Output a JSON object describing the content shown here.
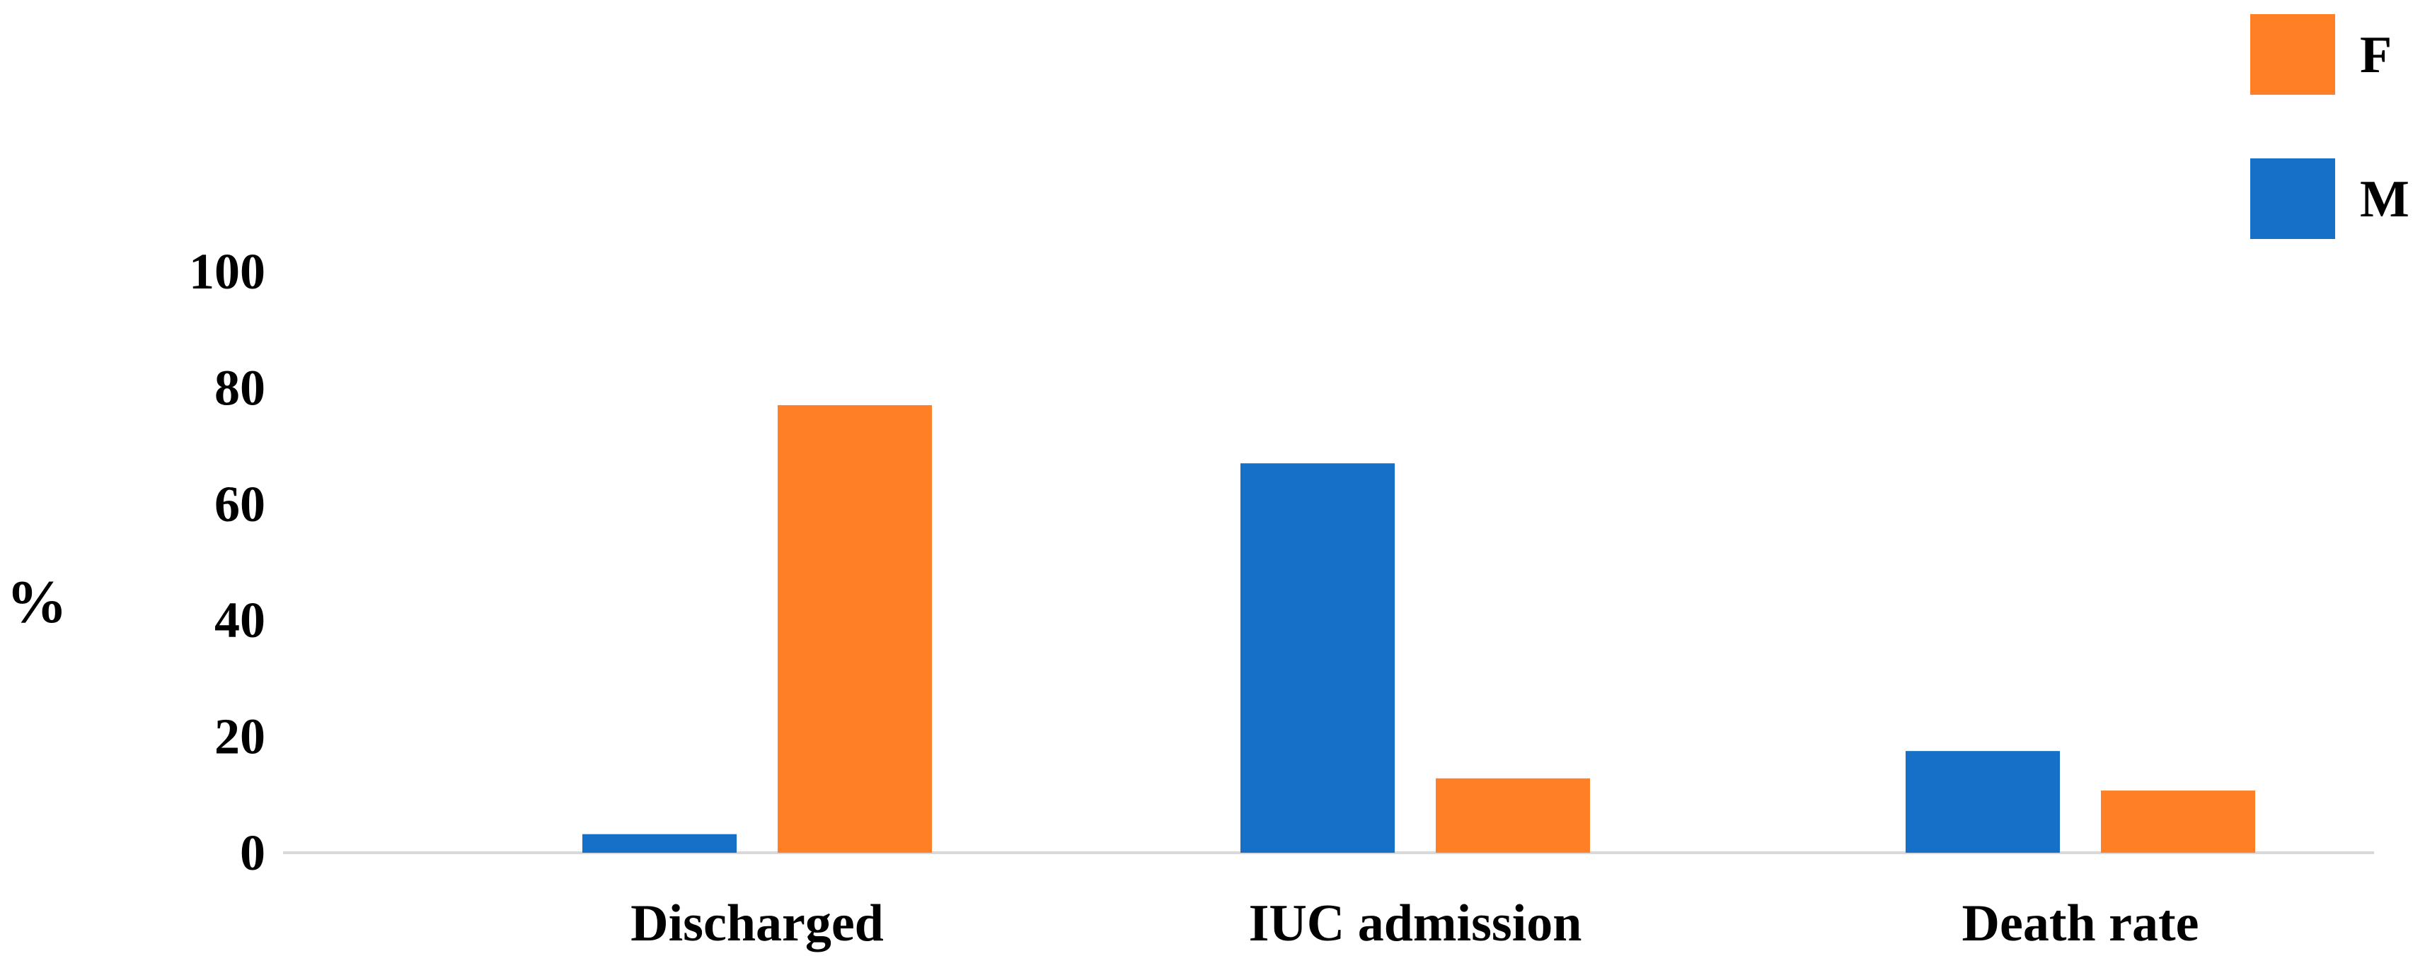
{
  "chart_data": {
    "type": "bar",
    "categories": [
      "Discharged",
      "IUC admission",
      "Death rate"
    ],
    "series": [
      {
        "name": "M",
        "values": [
          3.2,
          67,
          17.5
        ],
        "color": "#1670C8"
      },
      {
        "name": "F",
        "values": [
          77,
          12.8,
          10.7
        ],
        "color": "#FF7F27"
      }
    ],
    "title": "",
    "xlabel": "",
    "ylabel": "%",
    "ylim": [
      0,
      100
    ],
    "yticks": [
      0,
      20,
      40,
      60,
      80,
      100
    ],
    "grid": false,
    "legend": {
      "position": "top-right",
      "entries": [
        {
          "name": "F",
          "color": "#FF7F27"
        },
        {
          "name": "M",
          "color": "#1670C8"
        }
      ]
    },
    "axis_color": "#d9d9d9"
  }
}
